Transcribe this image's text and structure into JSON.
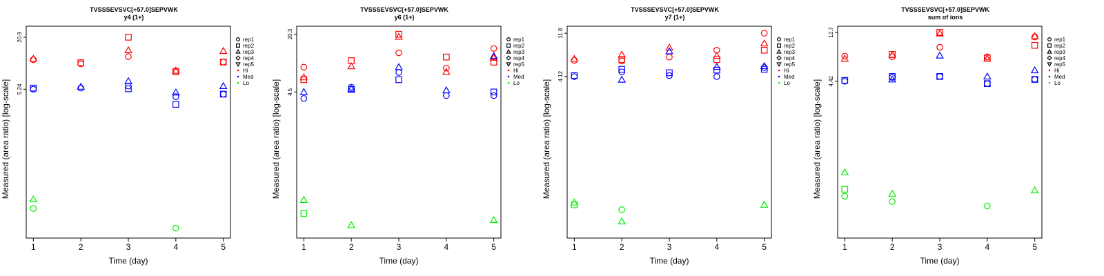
{
  "charts": [
    {
      "title": "TVSSSEVSVC[+57.0]SEPVWK",
      "subtitle": "y4 (1+)",
      "yticks": [
        "20.9",
        "5.24"
      ]
    },
    {
      "title": "TVSSSEVSVC[+57.0]SEPVWK",
      "subtitle": "y6 (1+)",
      "yticks": [
        "20.3",
        "4.5"
      ]
    },
    {
      "title": "TVSSSEVSVC[+57.0]SEPVWK",
      "subtitle": "y7 (1+)",
      "yticks": [
        "11.8",
        "4.12"
      ]
    },
    {
      "title": "TVSSSEVSVC[+57.0]SEPVWK",
      "subtitle": "sum of ions",
      "yticks": [
        "12.7",
        "4.42"
      ]
    }
  ],
  "xlabel": "Time (day)",
  "ylabel": "Measured (area ratio) [log-scale]",
  "legend": {
    "reps": [
      {
        "label": "rep1",
        "symbol": "circle"
      },
      {
        "label": "rep2",
        "symbol": "square"
      },
      {
        "label": "rep3",
        "symbol": "triangle-up"
      },
      {
        "label": "rep4",
        "symbol": "diamond"
      },
      {
        "label": "rep5",
        "symbol": "triangle-down"
      }
    ],
    "groups": [
      {
        "label": "Hi",
        "color": "#ff0000"
      },
      {
        "label": "Med",
        "color": "#0000ff"
      },
      {
        "label": "Lo",
        "color": "#00ee00"
      }
    ]
  },
  "chart_data": [
    {
      "type": "scatter",
      "title": "TVSSSEVSVC[+57.0]SEPVWK",
      "subtitle": "y4 (1+)",
      "xlabel": "Time (day)",
      "ylabel": "Measured (area ratio) [log-scale]",
      "log_y": true,
      "x_ticks": [
        1,
        2,
        3,
        4,
        5
      ],
      "y_ticks": [
        20.9,
        5.24
      ],
      "ylim": [
        0.1,
        28
      ],
      "xlim": [
        0.85,
        5.15
      ],
      "grid": false,
      "legend_position": "right",
      "series": [
        {
          "name": "Hi",
          "color": "#ff0000",
          "points": [
            {
              "x": 1,
              "y": 11.5,
              "rep": "rep1"
            },
            {
              "x": 1,
              "y": 11.8,
              "rep": "rep3"
            },
            {
              "x": 2,
              "y": 10.3,
              "rep": "rep1"
            },
            {
              "x": 2,
              "y": 10.6,
              "rep": "rep2"
            },
            {
              "x": 3,
              "y": 12.5,
              "rep": "rep1"
            },
            {
              "x": 3,
              "y": 20.9,
              "rep": "rep2"
            },
            {
              "x": 3,
              "y": 14.8,
              "rep": "rep3"
            },
            {
              "x": 4,
              "y": 8.3,
              "rep": "rep1"
            },
            {
              "x": 4,
              "y": 8.4,
              "rep": "rep2"
            },
            {
              "x": 4,
              "y": 8.6,
              "rep": "rep3"
            },
            {
              "x": 5,
              "y": 10.8,
              "rep": "rep1"
            },
            {
              "x": 5,
              "y": 10.8,
              "rep": "rep2"
            },
            {
              "x": 5,
              "y": 14.5,
              "rep": "rep3"
            }
          ]
        },
        {
          "name": "Med",
          "color": "#0000ff",
          "points": [
            {
              "x": 1,
              "y": 5.24,
              "rep": "rep1"
            },
            {
              "x": 1,
              "y": 5.4,
              "rep": "rep2"
            },
            {
              "x": 2,
              "y": 5.4,
              "rep": "rep1"
            },
            {
              "x": 2,
              "y": 5.6,
              "rep": "rep3"
            },
            {
              "x": 3,
              "y": 5.7,
              "rep": "rep1"
            },
            {
              "x": 3,
              "y": 5.3,
              "rep": "rep2"
            },
            {
              "x": 3,
              "y": 6.5,
              "rep": "rep3"
            },
            {
              "x": 4,
              "y": 4.3,
              "rep": "rep1"
            },
            {
              "x": 4,
              "y": 3.5,
              "rep": "rep2"
            },
            {
              "x": 4,
              "y": 4.8,
              "rep": "rep3"
            },
            {
              "x": 5,
              "y": 4.6,
              "rep": "rep1"
            },
            {
              "x": 5,
              "y": 4.6,
              "rep": "rep2"
            },
            {
              "x": 5,
              "y": 5.7,
              "rep": "rep3"
            }
          ]
        },
        {
          "name": "Lo",
          "color": "#00ee00",
          "points": [
            {
              "x": 1,
              "y": 0.22,
              "rep": "rep1"
            },
            {
              "x": 1,
              "y": 0.28,
              "rep": "rep3"
            },
            {
              "x": 4,
              "y": 0.13,
              "rep": "rep1"
            }
          ]
        }
      ]
    },
    {
      "type": "scatter",
      "title": "TVSSSEVSVC[+57.0]SEPVWK",
      "subtitle": "y6 (1+)",
      "xlabel": "Time (day)",
      "ylabel": "Measured (area ratio) [log-scale]",
      "log_y": true,
      "x_ticks": [
        1,
        2,
        3,
        4,
        5
      ],
      "y_ticks": [
        20.3,
        4.5
      ],
      "ylim": [
        0.1,
        25
      ],
      "xlim": [
        0.85,
        5.15
      ],
      "grid": false,
      "legend_position": "right",
      "series": [
        {
          "name": "Hi",
          "color": "#ff0000",
          "points": [
            {
              "x": 1,
              "y": 8.6,
              "rep": "rep1"
            },
            {
              "x": 1,
              "y": 6.2,
              "rep": "rep2"
            },
            {
              "x": 1,
              "y": 6.6,
              "rep": "rep3"
            },
            {
              "x": 2,
              "y": 10.2,
              "rep": "rep2"
            },
            {
              "x": 2,
              "y": 8.8,
              "rep": "rep3"
            },
            {
              "x": 3,
              "y": 12.5,
              "rep": "rep1"
            },
            {
              "x": 3,
              "y": 20.3,
              "rep": "rep2"
            },
            {
              "x": 3,
              "y": 19.0,
              "rep": "rep3"
            },
            {
              "x": 4,
              "y": 8.4,
              "rep": "rep1"
            },
            {
              "x": 4,
              "y": 11.2,
              "rep": "rep2"
            },
            {
              "x": 4,
              "y": 7.6,
              "rep": "rep3"
            },
            {
              "x": 5,
              "y": 14.0,
              "rep": "rep1"
            },
            {
              "x": 5,
              "y": 9.8,
              "rep": "rep2"
            },
            {
              "x": 5,
              "y": 11.0,
              "rep": "rep3"
            }
          ]
        },
        {
          "name": "Med",
          "color": "#0000ff",
          "points": [
            {
              "x": 1,
              "y": 3.8,
              "rep": "rep1"
            },
            {
              "x": 1,
              "y": 4.5,
              "rep": "rep3"
            },
            {
              "x": 2,
              "y": 5.1,
              "rep": "rep1"
            },
            {
              "x": 2,
              "y": 4.8,
              "rep": "rep2"
            },
            {
              "x": 2,
              "y": 4.9,
              "rep": "rep3"
            },
            {
              "x": 3,
              "y": 7.5,
              "rep": "rep1"
            },
            {
              "x": 3,
              "y": 6.2,
              "rep": "rep2"
            },
            {
              "x": 3,
              "y": 8.6,
              "rep": "rep3"
            },
            {
              "x": 4,
              "y": 4.1,
              "rep": "rep1"
            },
            {
              "x": 4,
              "y": 4.7,
              "rep": "rep3"
            },
            {
              "x": 5,
              "y": 4.1,
              "rep": "rep1"
            },
            {
              "x": 5,
              "y": 4.5,
              "rep": "rep2"
            },
            {
              "x": 5,
              "y": 11.5,
              "rep": "rep3"
            }
          ]
        },
        {
          "name": "Lo",
          "color": "#00ee00",
          "points": [
            {
              "x": 1,
              "y": 0.19,
              "rep": "rep2"
            },
            {
              "x": 1,
              "y": 0.27,
              "rep": "rep3"
            },
            {
              "x": 2,
              "y": 0.14,
              "rep": "rep3"
            },
            {
              "x": 5,
              "y": 0.16,
              "rep": "rep3"
            }
          ]
        }
      ]
    },
    {
      "type": "scatter",
      "title": "TVSSSEVSVC[+57.0]SEPVWK",
      "subtitle": "y7 (1+)",
      "xlabel": "Time (day)",
      "ylabel": "Measured (area ratio) [log-scale]",
      "log_y": true,
      "x_ticks": [
        1,
        2,
        3,
        4,
        5
      ],
      "y_ticks": [
        11.8,
        4.12
      ],
      "ylim": [
        0.08,
        14
      ],
      "xlim": [
        0.85,
        5.15
      ],
      "grid": false,
      "legend_position": "right",
      "series": [
        {
          "name": "Hi",
          "color": "#ff0000",
          "points": [
            {
              "x": 1,
              "y": 6.1,
              "rep": "rep1"
            },
            {
              "x": 1,
              "y": 6.3,
              "rep": "rep3"
            },
            {
              "x": 2,
              "y": 6.0,
              "rep": "rep1"
            },
            {
              "x": 2,
              "y": 6.2,
              "rep": "rep2"
            },
            {
              "x": 2,
              "y": 7.0,
              "rep": "rep3"
            },
            {
              "x": 3,
              "y": 6.6,
              "rep": "rep1"
            },
            {
              "x": 3,
              "y": 8.3,
              "rep": "rep3"
            },
            {
              "x": 4,
              "y": 7.8,
              "rep": "rep1"
            },
            {
              "x": 4,
              "y": 6.2,
              "rep": "rep2"
            },
            {
              "x": 4,
              "y": 6.8,
              "rep": "rep3"
            },
            {
              "x": 5,
              "y": 11.8,
              "rep": "rep1"
            },
            {
              "x": 5,
              "y": 7.8,
              "rep": "rep2"
            },
            {
              "x": 5,
              "y": 9.2,
              "rep": "rep3"
            }
          ]
        },
        {
          "name": "Med",
          "color": "#0000ff",
          "points": [
            {
              "x": 1,
              "y": 4.1,
              "rep": "rep1"
            },
            {
              "x": 1,
              "y": 4.2,
              "rep": "rep2"
            },
            {
              "x": 2,
              "y": 4.6,
              "rep": "rep1"
            },
            {
              "x": 2,
              "y": 4.9,
              "rep": "rep2"
            },
            {
              "x": 2,
              "y": 3.8,
              "rep": "rep3"
            },
            {
              "x": 3,
              "y": 4.2,
              "rep": "rep1"
            },
            {
              "x": 3,
              "y": 4.5,
              "rep": "rep2"
            },
            {
              "x": 3,
              "y": 7.6,
              "rep": "rep3"
            },
            {
              "x": 4,
              "y": 4.1,
              "rep": "rep1"
            },
            {
              "x": 4,
              "y": 4.8,
              "rep": "rep2"
            },
            {
              "x": 4,
              "y": 5.2,
              "rep": "rep3"
            },
            {
              "x": 5,
              "y": 5.1,
              "rep": "rep1"
            },
            {
              "x": 5,
              "y": 4.9,
              "rep": "rep2"
            },
            {
              "x": 5,
              "y": 5.3,
              "rep": "rep3"
            }
          ]
        },
        {
          "name": "Lo",
          "color": "#00ee00",
          "points": [
            {
              "x": 1,
              "y": 0.18,
              "rep": "rep2"
            },
            {
              "x": 1,
              "y": 0.19,
              "rep": "rep3"
            },
            {
              "x": 2,
              "y": 0.16,
              "rep": "rep1"
            },
            {
              "x": 2,
              "y": 0.12,
              "rep": "rep3"
            },
            {
              "x": 5,
              "y": 0.18,
              "rep": "rep3"
            }
          ]
        }
      ]
    },
    {
      "type": "scatter",
      "title": "TVSSSEVSVC[+57.0]SEPVWK",
      "subtitle": "sum of ions",
      "xlabel": "Time (day)",
      "ylabel": "Measured (area ratio) [log-scale]",
      "log_y": true,
      "x_ticks": [
        1,
        2,
        3,
        4,
        5
      ],
      "y_ticks": [
        12.7,
        4.42
      ],
      "ylim": [
        0.15,
        14.5
      ],
      "xlim": [
        0.85,
        5.15
      ],
      "grid": false,
      "legend_position": "right",
      "series": [
        {
          "name": "Hi",
          "color": "#ff0000",
          "points": [
            {
              "x": 1,
              "y": 7.6,
              "rep": "rep1"
            },
            {
              "x": 1,
              "y": 7.2,
              "rep": "rep3"
            },
            {
              "x": 2,
              "y": 7.5,
              "rep": "rep1"
            },
            {
              "x": 2,
              "y": 7.9,
              "rep": "rep2"
            },
            {
              "x": 2,
              "y": 7.8,
              "rep": "rep3"
            },
            {
              "x": 3,
              "y": 9.2,
              "rep": "rep1"
            },
            {
              "x": 3,
              "y": 12.7,
              "rep": "rep2"
            },
            {
              "x": 3,
              "y": 12.4,
              "rep": "rep3"
            },
            {
              "x": 4,
              "y": 7.5,
              "rep": "rep1"
            },
            {
              "x": 4,
              "y": 7.3,
              "rep": "rep2"
            },
            {
              "x": 4,
              "y": 7.2,
              "rep": "rep3"
            },
            {
              "x": 5,
              "y": 11.5,
              "rep": "rep1"
            },
            {
              "x": 5,
              "y": 9.6,
              "rep": "rep2"
            },
            {
              "x": 5,
              "y": 11.7,
              "rep": "rep3"
            }
          ]
        },
        {
          "name": "Med",
          "color": "#0000ff",
          "points": [
            {
              "x": 1,
              "y": 4.42,
              "rep": "rep1"
            },
            {
              "x": 1,
              "y": 4.5,
              "rep": "rep2"
            },
            {
              "x": 2,
              "y": 4.8,
              "rep": "rep1"
            },
            {
              "x": 2,
              "y": 4.9,
              "rep": "rep2"
            },
            {
              "x": 2,
              "y": 4.6,
              "rep": "rep3"
            },
            {
              "x": 3,
              "y": 4.9,
              "rep": "rep1"
            },
            {
              "x": 3,
              "y": 4.9,
              "rep": "rep2"
            },
            {
              "x": 3,
              "y": 7.7,
              "rep": "rep3"
            },
            {
              "x": 4,
              "y": 4.2,
              "rep": "rep1"
            },
            {
              "x": 4,
              "y": 4.2,
              "rep": "rep2"
            },
            {
              "x": 4,
              "y": 4.9,
              "rep": "rep3"
            },
            {
              "x": 5,
              "y": 4.6,
              "rep": "rep1"
            },
            {
              "x": 5,
              "y": 4.6,
              "rep": "rep2"
            },
            {
              "x": 5,
              "y": 5.6,
              "rep": "rep3"
            }
          ]
        },
        {
          "name": "Lo",
          "color": "#00ee00",
          "points": [
            {
              "x": 1,
              "y": 0.37,
              "rep": "rep1"
            },
            {
              "x": 1,
              "y": 0.43,
              "rep": "rep2"
            },
            {
              "x": 1,
              "y": 0.62,
              "rep": "rep3"
            },
            {
              "x": 2,
              "y": 0.33,
              "rep": "rep1"
            },
            {
              "x": 2,
              "y": 0.39,
              "rep": "rep3"
            },
            {
              "x": 4,
              "y": 0.3,
              "rep": "rep1"
            },
            {
              "x": 5,
              "y": 0.42,
              "rep": "rep3"
            }
          ]
        }
      ]
    }
  ]
}
